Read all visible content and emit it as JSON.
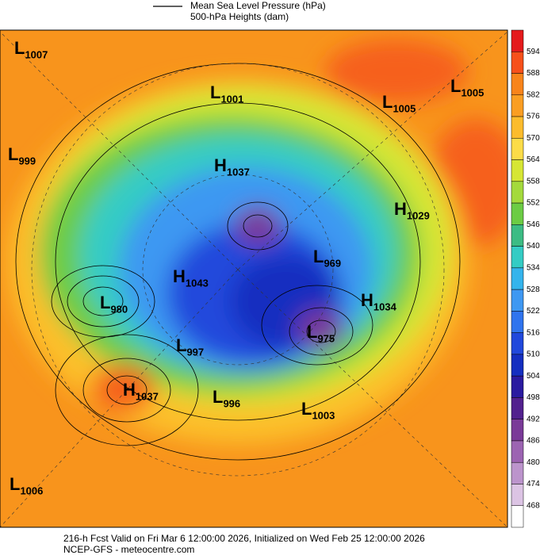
{
  "header": {
    "legend_line1": "Mean Sea Level Pressure (hPa)",
    "legend_line2": "500-hPa Heights (dam)"
  },
  "colorbar": {
    "ticks": [
      594,
      588,
      582,
      576,
      570,
      564,
      558,
      552,
      546,
      540,
      534,
      528,
      522,
      516,
      510,
      504,
      498,
      492,
      486,
      480,
      474,
      468
    ],
    "colors": [
      "#e41a1c",
      "#f6501a",
      "#f8841a",
      "#fa9e22",
      "#fcbc2c",
      "#fcdc48",
      "#d6e634",
      "#a4da3c",
      "#6ccc44",
      "#3cbc84",
      "#34ccc4",
      "#34b4ec",
      "#3e98f2",
      "#2f74ee",
      "#2048dc",
      "#142ec0",
      "#2a1aa0",
      "#52208e",
      "#7a3a98",
      "#9c64b2",
      "#bc94cc",
      "#dcc4e4",
      "#ffffff"
    ]
  },
  "centers": [
    {
      "letter": "L",
      "value": "1007"
    },
    {
      "letter": "L",
      "value": "1001"
    },
    {
      "letter": "L",
      "value": "1005"
    },
    {
      "letter": "L",
      "value": "1005"
    },
    {
      "letter": "L",
      "value": "999"
    },
    {
      "letter": "H",
      "value": "1037"
    },
    {
      "letter": "H",
      "value": "1029"
    },
    {
      "letter": "L",
      "value": "969"
    },
    {
      "letter": "H",
      "value": "1043"
    },
    {
      "letter": "L",
      "value": "980"
    },
    {
      "letter": "H",
      "value": "1034"
    },
    {
      "letter": "L",
      "value": "975"
    },
    {
      "letter": "L",
      "value": "997"
    },
    {
      "letter": "H",
      "value": "1037"
    },
    {
      "letter": "L",
      "value": "996"
    },
    {
      "letter": "L",
      "value": "1003"
    },
    {
      "letter": "L",
      "value": "1006"
    }
  ],
  "footer": {
    "line1": "216-h Fcst Valid on Fri Mar  6 12:00:00 2026, Initialized on Wed Feb 25 12:00:00 2026",
    "line2": "NCEP-GFS  -  meteocentre.com"
  }
}
